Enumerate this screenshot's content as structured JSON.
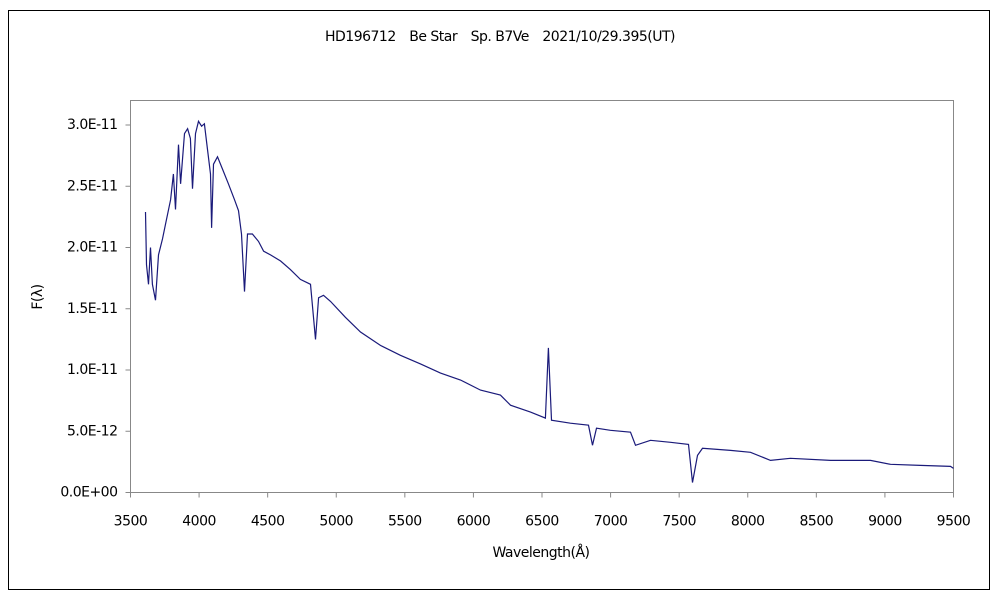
{
  "chart_data": {
    "type": "line",
    "title": "HD196712　Be Star　Sp. B7Ve　2021/10/29.395(UT)",
    "xlabel": "Wavelength(Å)",
    "ylabel": "F(λ)",
    "xlim": [
      3500,
      9500
    ],
    "xticks": [
      3500,
      4000,
      4500,
      5000,
      5500,
      6000,
      6500,
      7000,
      7500,
      8000,
      8500,
      9000,
      9500
    ],
    "ylim": [
      0,
      3.2e-11
    ],
    "yticks": [
      {
        "value": 0,
        "label": "0.0E+00"
      },
      {
        "value": 5e-12,
        "label": "5.0E-12"
      },
      {
        "value": 1e-11,
        "label": "1.0E-11"
      },
      {
        "value": 1.5e-11,
        "label": "1.5E-11"
      },
      {
        "value": 2e-11,
        "label": "2.0E-11"
      },
      {
        "value": 2.5e-11,
        "label": "2.5E-11"
      },
      {
        "value": 3e-11,
        "label": "3.0E-11"
      }
    ],
    "grid": false,
    "series": [
      {
        "color": "#1a1a7a",
        "x": [
          3609,
          3617,
          3631,
          3646,
          3660,
          3682,
          3704,
          3733,
          3755,
          3792,
          3813,
          3828,
          3850,
          3865,
          3894,
          3916,
          3937,
          3952,
          3974,
          3996,
          4018,
          4039,
          4061,
          4083,
          4091,
          4105,
          4134,
          4171,
          4214,
          4258,
          4287,
          4309,
          4331,
          4353,
          4389,
          4433,
          4470,
          4521,
          4594,
          4666,
          4739,
          4812,
          4849,
          4871,
          4907,
          4958,
          5067,
          5177,
          5323,
          5468,
          5614,
          5760,
          5906,
          6052,
          6197,
          6270,
          6416,
          6525,
          6547,
          6569,
          6707,
          6839,
          6868,
          6897,
          6999,
          7145,
          7182,
          7291,
          7437,
          7568,
          7597,
          7634,
          7670,
          7874,
          8020,
          8166,
          8311,
          8603,
          8895,
          9041,
          9259,
          9478,
          9500
        ],
        "values": [
          2.29e-11,
          1.86e-11,
          1.7e-11,
          2e-11,
          1.7e-11,
          1.57e-11,
          1.94e-11,
          2.07e-11,
          2.19e-11,
          2.39e-11,
          2.6e-11,
          2.31e-11,
          2.84e-11,
          2.52e-11,
          2.93e-11,
          2.97e-11,
          2.89e-11,
          2.48e-11,
          2.93e-11,
          3.03e-11,
          2.99e-11,
          3.01e-11,
          2.8e-11,
          2.6e-11,
          2.16e-11,
          2.68e-11,
          2.74e-11,
          2.64e-11,
          2.52e-11,
          2.39e-11,
          2.3e-11,
          2.11e-11,
          1.64e-11,
          2.11e-11,
          2.11e-11,
          2.05e-11,
          1.97e-11,
          1.94e-11,
          1.89e-11,
          1.82e-11,
          1.74e-11,
          1.7e-11,
          1.25e-11,
          1.59e-11,
          1.61e-11,
          1.56e-11,
          1.43e-11,
          1.31e-11,
          1.2e-11,
          1.12e-11,
          1.05e-11,
          9.75e-12,
          9.18e-12,
          8.36e-12,
          7.95e-12,
          7.13e-12,
          6.56e-12,
          6.07e-12,
          1.18e-11,
          5.9e-12,
          5.66e-12,
          5.49e-12,
          3.85e-12,
          5.25e-12,
          5.08e-12,
          4.92e-12,
          3.85e-12,
          4.26e-12,
          4.1e-12,
          3.93e-12,
          8.2e-13,
          3.03e-12,
          3.61e-12,
          3.44e-12,
          3.28e-12,
          2.62e-12,
          2.79e-12,
          2.62e-12,
          2.62e-12,
          2.3e-12,
          2.21e-12,
          2.13e-12,
          1.97e-12
        ]
      }
    ]
  }
}
